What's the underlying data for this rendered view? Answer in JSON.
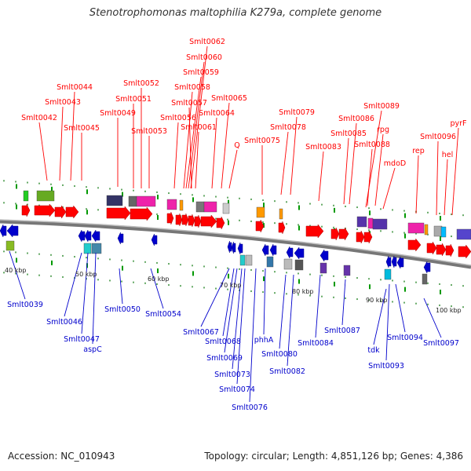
{
  "title": "Stenotrophomonas maltophilia K279a, complete genome",
  "footer": {
    "accession": "Accession: NC_010943",
    "topology": "Topology: circular; Length: 4,851,126 bp; Genes: 4,386"
  },
  "colors": {
    "forward": "#ff0000",
    "reverse": "#0000cc",
    "backbone": "#888888",
    "tick": "#009900"
  },
  "kbp_labels": [
    "40 kbp",
    "50 kbp",
    "60 kbp",
    "70 kbp",
    "80 kbp",
    "90 kbp",
    "100 kbp"
  ],
  "forward_labels": [
    "Smlt0062",
    "Smlt0060",
    "Smlt0059",
    "Smlt0058",
    "Smlt0057",
    "Smlt0056",
    "Smlt0061",
    "Smlt0065",
    "Smlt0064",
    "Smlt0052",
    "Smlt0051",
    "Smlt0049",
    "Smlt0053",
    "Smlt0044",
    "Smlt0043",
    "Smlt0045",
    "Smlt0042",
    "Smlt0079",
    "Smlt0078",
    "Smlt0075",
    "Q",
    "Smlt0089",
    "Smlt0086",
    "Smlt0085",
    "Smlt0083",
    "rpg",
    "Smlt0088",
    "mdoD",
    "rep",
    "Smlt0096",
    "hel",
    "pyrF"
  ],
  "reverse_labels": [
    "Smlt0039",
    "Smlt0046",
    "Smlt0047",
    "aspC",
    "Smlt0050",
    "Smlt0054",
    "Smlt0067",
    "Smlt0068",
    "Smlt0069",
    "Smlt0073",
    "Smlt0074",
    "Smlt0076",
    "phhA",
    "Smlt0080",
    "Smlt0082",
    "Smlt0084",
    "Smlt0087",
    "tdk",
    "Smlt0093",
    "Smlt0094",
    "Smlt0097"
  ]
}
